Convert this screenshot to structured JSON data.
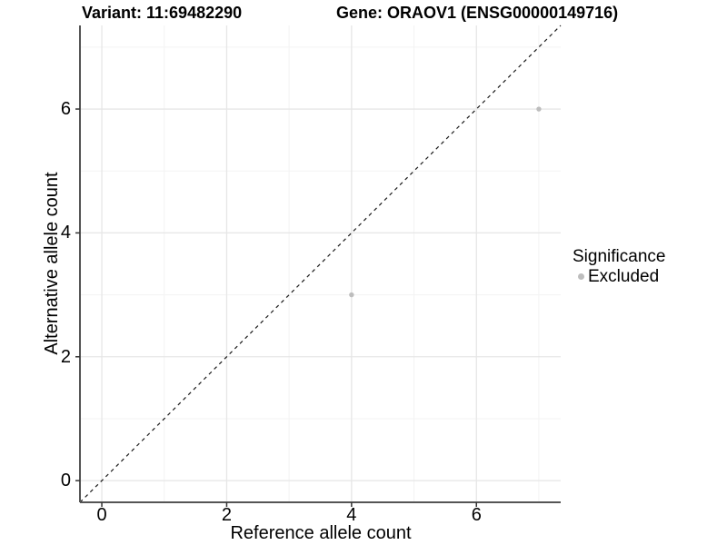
{
  "chart_data": {
    "type": "scatter",
    "title_left": "Variant: 11:69482290",
    "title_right": "Gene: ORAOV1 (ENSG00000149716)",
    "xlabel": "Reference allele count",
    "ylabel": "Alternative allele count",
    "xlim": [
      -0.35,
      7.35
    ],
    "ylim": [
      -0.35,
      7.35
    ],
    "xticks": [
      0,
      2,
      4,
      6
    ],
    "yticks": [
      0,
      2,
      4,
      6
    ],
    "x_minor_ticks": [
      1,
      3,
      5,
      7
    ],
    "y_minor_ticks": [
      1,
      3,
      5,
      7
    ],
    "grid": "major+minor",
    "reference_line": {
      "type": "identity",
      "slope": 1,
      "intercept": 0,
      "style": "dashed",
      "color": "#1a1a1a"
    },
    "series": [
      {
        "name": "Excluded",
        "color": "#bdbdbd",
        "points": [
          {
            "x": 4,
            "y": 3
          },
          {
            "x": 7,
            "y": 6
          }
        ]
      }
    ],
    "legend": {
      "title": "Significance",
      "position": "right",
      "items": [
        {
          "label": "Excluded",
          "color": "#bdbdbd"
        }
      ]
    },
    "style": {
      "background": "#ffffff",
      "grid_major_color": "#e6e6e6",
      "grid_minor_color": "#f3f3f3",
      "axis_line_color": "#555555",
      "tick_color": "#333333",
      "point_radius": 2.7
    }
  }
}
